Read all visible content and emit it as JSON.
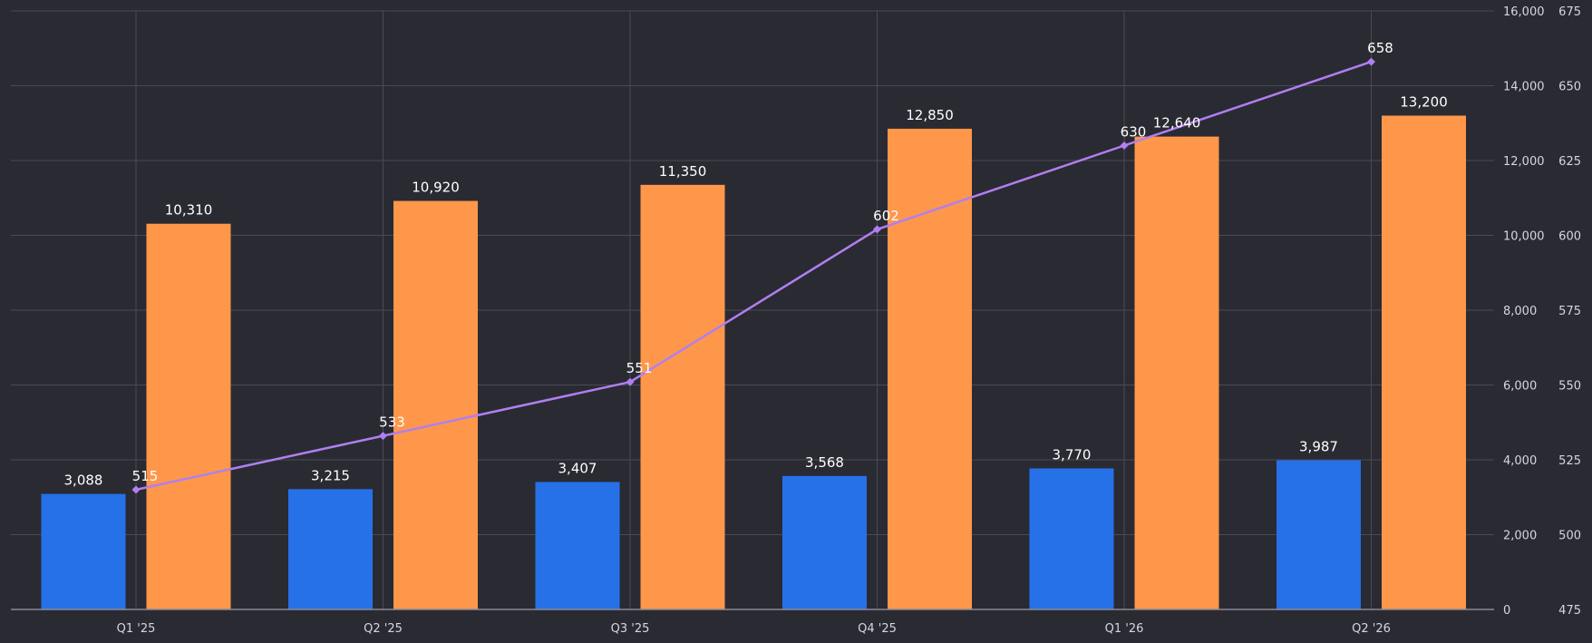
{
  "chart_data": {
    "type": "bar",
    "categories": [
      "Q1 '25",
      "Q2 '25",
      "Q3 '25",
      "Q4 '25",
      "Q1 '26",
      "Q2 '26"
    ],
    "series": [
      {
        "type": "bar",
        "axis": "left",
        "color": "#2671e8",
        "values": [
          3088,
          3215,
          3407,
          3568,
          3770,
          3987
        ],
        "labels": [
          "3,088",
          "3,215",
          "3,407",
          "3,568",
          "3,770",
          "3,987"
        ]
      },
      {
        "type": "bar",
        "axis": "left",
        "color": "#ff974a",
        "values": [
          10310,
          10920,
          11350,
          12850,
          12640,
          13200
        ],
        "labels": [
          "10,310",
          "10,920",
          "11,350",
          "12,850",
          "12,640",
          "13,200"
        ]
      },
      {
        "type": "line",
        "axis": "right",
        "color": "#b07ff0",
        "values": [
          515,
          533,
          551,
          602,
          630,
          658
        ],
        "labels": [
          "515",
          "533",
          "551",
          "602",
          "630",
          "658"
        ]
      }
    ],
    "y_left": {
      "min": 0,
      "max": 16000,
      "ticks": [
        0,
        2000,
        4000,
        6000,
        8000,
        10000,
        12000,
        14000,
        16000
      ],
      "tick_labels": [
        "0",
        "2,000",
        "4,000",
        "6,000",
        "8,000",
        "10,000",
        "12,000",
        "14,000",
        "16,000"
      ]
    },
    "y_right": {
      "min": 475,
      "max": 675,
      "ticks": [
        475,
        500,
        525,
        550,
        575,
        600,
        625,
        650,
        675
      ],
      "tick_labels": [
        "475",
        "500",
        "525",
        "550",
        "575",
        "600",
        "625",
        "650",
        "675"
      ]
    },
    "grid": true,
    "legend": "none",
    "colors": {
      "background": "#2a2a33",
      "grid": "#4a4a55",
      "axis": "#8a8a95",
      "text": "#d6d6de"
    }
  }
}
